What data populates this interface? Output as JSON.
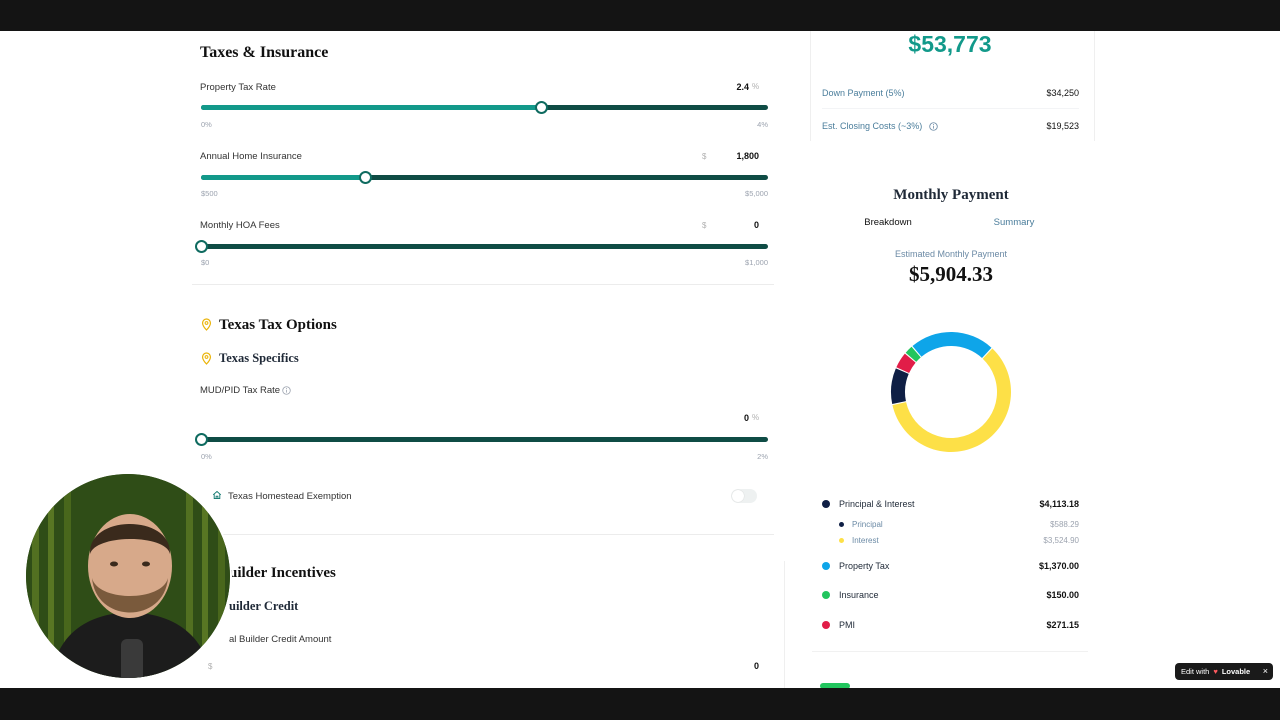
{
  "taxes_insurance": {
    "title": "Taxes & Insurance",
    "property_tax": {
      "label": "Property Tax Rate",
      "value": "2.4",
      "unit": "%",
      "min": "0%",
      "max": "4%",
      "fraction": 0.6
    },
    "home_insurance": {
      "label": "Annual Home Insurance",
      "currency": "$",
      "value": "1,800",
      "min": "$500",
      "max": "$5,000",
      "fraction": 0.2889
    },
    "hoa": {
      "label": "Monthly HOA Fees",
      "currency": "$",
      "value": "0",
      "min": "$0",
      "max": "$1,000",
      "fraction": 0
    }
  },
  "texas": {
    "title": "Texas Tax Options",
    "subtitle": "Texas Specifics",
    "mud_pid": {
      "label": "MUD/PID Tax Rate",
      "value": "0",
      "unit": "%",
      "min": "0%",
      "max": "2%",
      "fraction": 0
    },
    "homestead": {
      "label": "Texas Homestead Exemption",
      "enabled": false
    }
  },
  "builder": {
    "title": "uilder Incentives",
    "subtitle": "uilder Credit",
    "credit_label": "al Builder Credit Amount",
    "currency": "$",
    "value": "0"
  },
  "summary_card": {
    "total_cash": "$53,773",
    "down_payment_label": "Down Payment (5%)",
    "down_payment_value": "$34,250",
    "closing_costs_label": "Est. Closing Costs (~3%)",
    "closing_costs_value": "$19,523"
  },
  "monthly_payment": {
    "title": "Monthly Payment",
    "tabs": [
      "Breakdown",
      "Summary"
    ],
    "estimated_label": "Estimated Monthly Payment",
    "estimated_value": "$5,904.33",
    "legend": {
      "principal_interest": {
        "label": "Principal & Interest",
        "value": "$4,113.18",
        "color": "#0f1f45"
      },
      "principal": {
        "label": "Principal",
        "value": "$588.29",
        "color": "#0f1f45"
      },
      "interest": {
        "label": "Interest",
        "value": "$3,524.90",
        "color": "#fde047"
      },
      "property_tax": {
        "label": "Property Tax",
        "value": "$1,370.00",
        "color": "#0ea5e9"
      },
      "insurance": {
        "label": "Insurance",
        "value": "$150.00",
        "color": "#22c55e"
      },
      "pmi": {
        "label": "PMI",
        "value": "$271.15",
        "color": "#e11d48"
      }
    }
  },
  "chart_data": {
    "type": "pie",
    "categories": [
      "Interest",
      "Principal",
      "PMI",
      "Insurance",
      "Property Tax"
    ],
    "values": [
      3524.9,
      588.29,
      271.15,
      150.0,
      1370.0
    ],
    "colors": [
      "#fde047",
      "#0f1f45",
      "#e11d48",
      "#22c55e",
      "#0ea5e9"
    ]
  },
  "badge": {
    "prefix": "Edit with",
    "brand": "Lovable",
    "close": "×"
  }
}
